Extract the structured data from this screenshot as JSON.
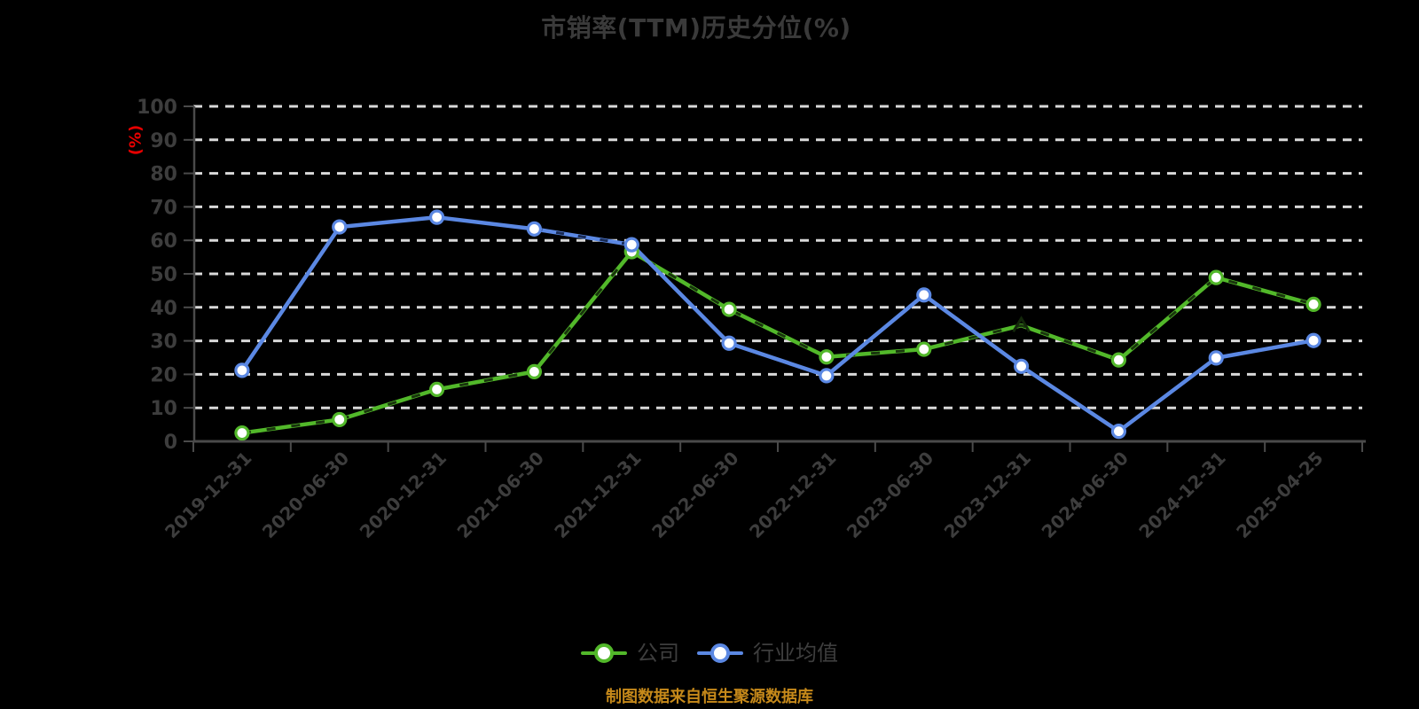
{
  "title": "市销率(TTM)历史分位(%)",
  "y_axis_unit": "(%)",
  "footnote": "制图数据来自恒生聚源数据库",
  "colors": {
    "background": "#000000",
    "company": "#52b82a",
    "industry": "#5b88e3",
    "grid": "#d9d9d9",
    "axis": "#4a4a4a",
    "axis_text": "#3d3d3d",
    "title_text": "#3a3a3a",
    "unit_label": "#e60000",
    "footnote_text": "#c6891a",
    "marker_fill": "#ffffff",
    "company_dash_overlay": "#13270a",
    "industry_dash_overlay": "#0e1b3d"
  },
  "legend": [
    {
      "label": "公司",
      "color": "#52b82a"
    },
    {
      "label": "行业均值",
      "color": "#5b88e3"
    }
  ],
  "chart_data": {
    "type": "line",
    "title": "市销率(TTM)历史分位(%)",
    "xlabel": "",
    "ylabel": "(%)",
    "ylim": [
      0,
      100
    ],
    "y_tick_step": 10,
    "grid": true,
    "legend_position": "bottom",
    "categories": [
      "2019-12-31",
      "2020-06-30",
      "2020-12-31",
      "2021-06-30",
      "2021-12-31",
      "2022-06-30",
      "2022-12-31",
      "2023-06-30",
      "2023-12-31",
      "2024-06-30",
      "2024-12-31",
      "2025-04-25"
    ],
    "series": [
      {
        "name": "公司",
        "color": "#52b82a",
        "values": [
          2.5,
          6.5,
          15.5,
          20.8,
          56.6,
          39.4,
          25.2,
          27.5,
          34.6,
          24.3,
          48.9,
          40.9
        ]
      },
      {
        "name": "行业均值",
        "color": "#5b88e3",
        "values": [
          21.2,
          64.0,
          66.9,
          63.4,
          58.7,
          29.3,
          19.6,
          43.7,
          22.4,
          3.0,
          24.9,
          30.1
        ]
      }
    ]
  }
}
